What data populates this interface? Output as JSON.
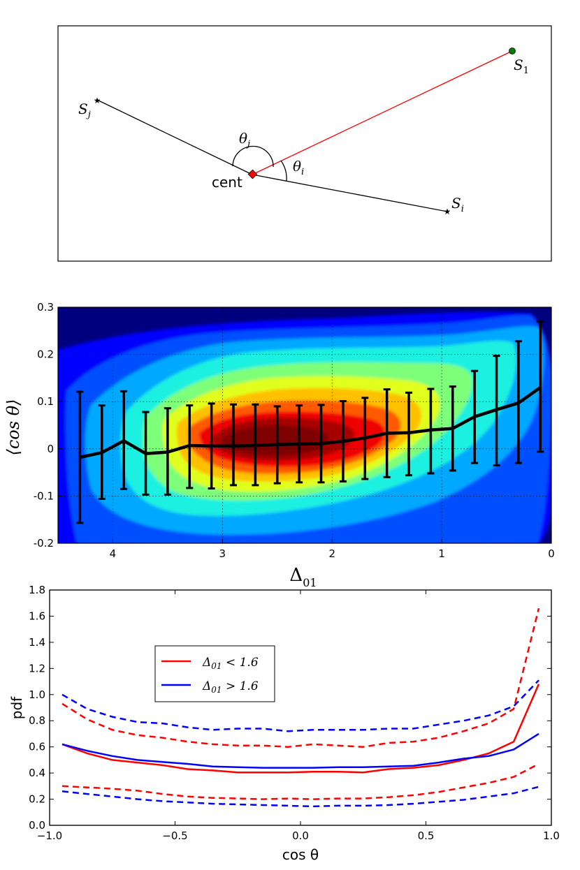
{
  "chart_data": [
    {
      "type": "diagram",
      "points": [
        {
          "label": "S",
          "sub": "1",
          "marker": "circle",
          "color": "#008000"
        },
        {
          "label": "S",
          "sub": "j",
          "marker": "star",
          "color": "#000000"
        },
        {
          "label": "S",
          "sub": "i",
          "marker": "star",
          "color": "#000000"
        },
        {
          "label": "cent",
          "marker": "diamond",
          "color": "#ff0000"
        }
      ],
      "angles": [
        {
          "label": "θ",
          "sub": "j"
        },
        {
          "label": "θ",
          "sub": "i"
        }
      ],
      "line_colors": {
        "to_s1": "#ff0000",
        "to_others": "#000000"
      }
    },
    {
      "type": "heatmap",
      "subtype": "filled-contour-with-errorbars",
      "xlabel": "Δ",
      "xlabel_sub": "01",
      "ylabel": "⟨cos θ⟩",
      "xlim": [
        4.5,
        0
      ],
      "ylim": [
        -0.2,
        0.3
      ],
      "x_reversed": true,
      "xticks": [
        4,
        3,
        2,
        1,
        0
      ],
      "xtick_labels": [
        "4",
        "3",
        "2",
        "1",
        "0"
      ],
      "yticks": [
        -0.2,
        -0.1,
        0,
        0.1,
        0.2,
        0.3
      ],
      "ytick_labels": [
        "-0.2",
        "-0.1",
        "0",
        "0.1",
        "0.2",
        "0.3"
      ],
      "grid": true,
      "colormap": "jet",
      "density_peak": {
        "x": 2.6,
        "y": 0.01
      },
      "mean_line": {
        "x": [
          4.3,
          4.1,
          3.9,
          3.7,
          3.5,
          3.3,
          3.1,
          2.9,
          2.7,
          2.5,
          2.3,
          2.1,
          1.9,
          1.7,
          1.5,
          1.3,
          1.1,
          0.9,
          0.7,
          0.5,
          0.3,
          0.1
        ],
        "y": [
          -0.018,
          -0.008,
          0.017,
          -0.01,
          -0.007,
          0.007,
          0.006,
          0.006,
          0.007,
          0.009,
          0.01,
          0.011,
          0.016,
          0.023,
          0.033,
          0.034,
          0.04,
          0.043,
          0.068,
          0.083,
          0.097,
          0.13
        ],
        "err_low": [
          -0.157,
          -0.106,
          -0.085,
          -0.097,
          -0.097,
          -0.083,
          -0.084,
          -0.077,
          -0.077,
          -0.073,
          -0.071,
          -0.071,
          -0.069,
          -0.064,
          -0.06,
          -0.056,
          -0.052,
          -0.046,
          -0.03,
          -0.035,
          -0.03,
          -0.006
        ],
        "err_high": [
          0.121,
          0.092,
          0.122,
          0.078,
          0.086,
          0.092,
          0.096,
          0.094,
          0.094,
          0.09,
          0.092,
          0.093,
          0.101,
          0.108,
          0.126,
          0.119,
          0.127,
          0.132,
          0.165,
          0.197,
          0.228,
          0.27
        ]
      }
    },
    {
      "type": "line",
      "xlabel": "cos θ",
      "ylabel": "pdf",
      "xlim": [
        -1.0,
        1.0
      ],
      "ylim": [
        0.0,
        1.8
      ],
      "xticks": [
        -1.0,
        -0.5,
        0.0,
        0.5,
        1.0
      ],
      "xtick_labels": [
        "−1.0",
        "−0.5",
        "0.0",
        "0.5",
        "1.0"
      ],
      "yticks": [
        0.0,
        0.2,
        0.4,
        0.6,
        0.8,
        1.0,
        1.2,
        1.4,
        1.6,
        1.8
      ],
      "ytick_labels": [
        "0.0",
        "0.2",
        "0.4",
        "0.6",
        "0.8",
        "1.0",
        "1.2",
        "1.4",
        "1.6",
        "1.8"
      ],
      "legend_placement": "upper-left",
      "x": [
        -0.95,
        -0.85,
        -0.75,
        -0.65,
        -0.55,
        -0.45,
        -0.35,
        -0.25,
        -0.15,
        -0.05,
        0.05,
        0.15,
        0.25,
        0.35,
        0.45,
        0.55,
        0.65,
        0.75,
        0.85,
        0.95
      ],
      "series": [
        {
          "name": "Δ01 < 1.6",
          "legend_main": "Δ",
          "legend_sub": "01",
          "legend_rest": " < 1.6",
          "color": "#ff0000",
          "style": "solid",
          "values": [
            0.62,
            0.55,
            0.5,
            0.48,
            0.46,
            0.43,
            0.42,
            0.405,
            0.405,
            0.405,
            0.41,
            0.41,
            0.405,
            0.43,
            0.44,
            0.46,
            0.5,
            0.55,
            0.64,
            1.08
          ]
        },
        {
          "name": "Δ01 > 1.6",
          "legend_main": "Δ",
          "legend_sub": "01",
          "legend_rest": " > 1.6",
          "color": "#0000ff",
          "style": "solid",
          "values": [
            0.62,
            0.57,
            0.53,
            0.5,
            0.485,
            0.47,
            0.45,
            0.445,
            0.44,
            0.44,
            0.44,
            0.445,
            0.445,
            0.45,
            0.455,
            0.48,
            0.51,
            0.53,
            0.58,
            0.7
          ]
        },
        {
          "color": "#ff0000",
          "style": "dashed",
          "values": [
            0.93,
            0.81,
            0.73,
            0.69,
            0.67,
            0.64,
            0.62,
            0.61,
            0.61,
            0.6,
            0.62,
            0.61,
            0.6,
            0.63,
            0.64,
            0.67,
            0.72,
            0.78,
            0.89,
            1.66
          ]
        },
        {
          "color": "#0000ff",
          "style": "dashed",
          "values": [
            1.0,
            0.89,
            0.83,
            0.79,
            0.78,
            0.75,
            0.73,
            0.74,
            0.74,
            0.72,
            0.73,
            0.73,
            0.73,
            0.74,
            0.74,
            0.77,
            0.8,
            0.84,
            0.91,
            1.11
          ]
        },
        {
          "color": "#ff0000",
          "style": "dashed",
          "values": [
            0.3,
            0.29,
            0.28,
            0.265,
            0.24,
            0.22,
            0.21,
            0.205,
            0.2,
            0.205,
            0.2,
            0.205,
            0.205,
            0.215,
            0.23,
            0.255,
            0.29,
            0.325,
            0.37,
            0.47
          ]
        },
        {
          "color": "#0000ff",
          "style": "dashed",
          "values": [
            0.26,
            0.24,
            0.22,
            0.2,
            0.185,
            0.175,
            0.165,
            0.16,
            0.155,
            0.15,
            0.145,
            0.15,
            0.15,
            0.155,
            0.165,
            0.18,
            0.195,
            0.22,
            0.245,
            0.295
          ]
        }
      ]
    }
  ]
}
